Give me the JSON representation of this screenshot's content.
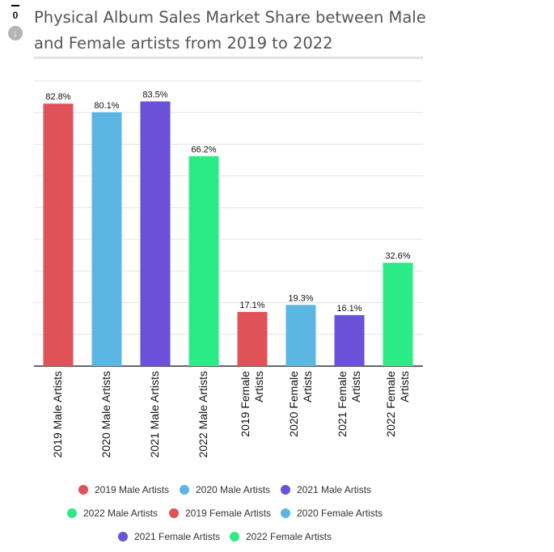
{
  "vote": {
    "count": "0",
    "down_icon": "arrow-down-circle-icon"
  },
  "chart_data": {
    "type": "bar",
    "title": "Physical Album Sales Market Share between Male and Female artists from 2019 to 2022",
    "categories": [
      "2019 Male Artists",
      "2020 Male Artists",
      "2021 Male Artists",
      "2022 Male Artists",
      "2019 Female Artists",
      "2020 Female Artists",
      "2021 Female Artists",
      "2022 Female Artists"
    ],
    "values": [
      82.8,
      80.1,
      83.5,
      66.2,
      17.1,
      19.3,
      16.1,
      32.6
    ],
    "value_labels": [
      "82.8%",
      "80.1%",
      "83.5%",
      "66.2%",
      "17.1%",
      "19.3%",
      "16.1%",
      "32.6%"
    ],
    "colors": [
      "#de5258",
      "#5cb6e4",
      "#6b50d8",
      "#2beb86",
      "#de5258",
      "#5cb6e4",
      "#6b50d8",
      "#2beb86"
    ],
    "ylim": [
      0,
      90
    ],
    "grid": true,
    "legend_position": "bottom",
    "legend": [
      "2019 Male Artists",
      "2020 Male Artists",
      "2021 Male Artists",
      "2022 Male Artists",
      "2019 Female Artists",
      "2020 Female Artists",
      "2021 Female Artists",
      "2022 Female Artists"
    ],
    "xlabel": "",
    "ylabel": ""
  }
}
